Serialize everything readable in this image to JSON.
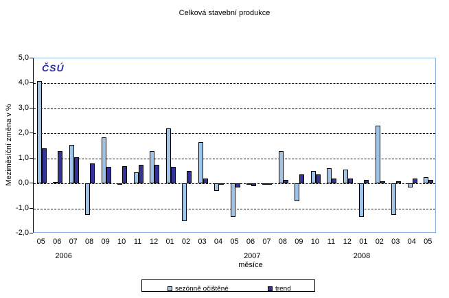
{
  "window": {
    "title": "Celková stavební produkce"
  },
  "logo_text": "ČSÚ",
  "colors": {
    "seasonal_bar": "#9EC5E8",
    "trend_bar": "#333399",
    "bar_outline": "#000000",
    "plot_border": "#8EB4E3",
    "gridline": "#000000",
    "logo": "#2B2FA8",
    "background": "#FFFFFF"
  },
  "chart_data": {
    "type": "bar",
    "title": "Celková stavební produkce",
    "xlabel": "měsíce",
    "ylabel": "Meziměsíční změna v %",
    "ylim": [
      -2.0,
      5.0
    ],
    "y_tick_step": 1.0,
    "y_tick_labels": [
      "5,0",
      "4,0",
      "3,0",
      "2,0",
      "1,0",
      "0,0",
      "-1,0",
      "-2,0"
    ],
    "grid": "horizontal-dashed",
    "legend_position": "bottom-center",
    "categories": [
      "05",
      "06",
      "07",
      "08",
      "09",
      "10",
      "11",
      "12",
      "01",
      "02",
      "03",
      "04",
      "05",
      "06",
      "07",
      "08",
      "09",
      "10",
      "11",
      "12",
      "01",
      "02",
      "03",
      "04",
      "05"
    ],
    "year_groups": [
      {
        "year": "2006",
        "months": 8
      },
      {
        "year": "2007",
        "months": 12
      },
      {
        "year": "2008",
        "months": 5
      }
    ],
    "year_label_slots": [
      1.9,
      13.6,
      20.4
    ],
    "series": [
      {
        "name": "sezónně očištěné",
        "color": "#9EC5E8",
        "values": [
          4.1,
          0.05,
          1.55,
          -1.25,
          1.85,
          0.0,
          0.45,
          1.3,
          2.2,
          -1.5,
          1.65,
          -0.3,
          -1.35,
          -0.05,
          0.0,
          1.3,
          -0.7,
          0.5,
          0.6,
          0.55,
          -1.35,
          2.3,
          -1.25,
          -0.15,
          0.25
        ]
      },
      {
        "name": "trend",
        "color": "#333399",
        "values": [
          1.4,
          1.3,
          1.05,
          0.8,
          0.65,
          0.7,
          0.75,
          0.75,
          0.65,
          0.5,
          0.2,
          -0.03,
          -0.15,
          -0.1,
          0.0,
          0.15,
          0.35,
          0.35,
          0.2,
          0.2,
          0.15,
          0.1,
          0.1,
          0.2,
          0.15
        ]
      }
    ]
  }
}
